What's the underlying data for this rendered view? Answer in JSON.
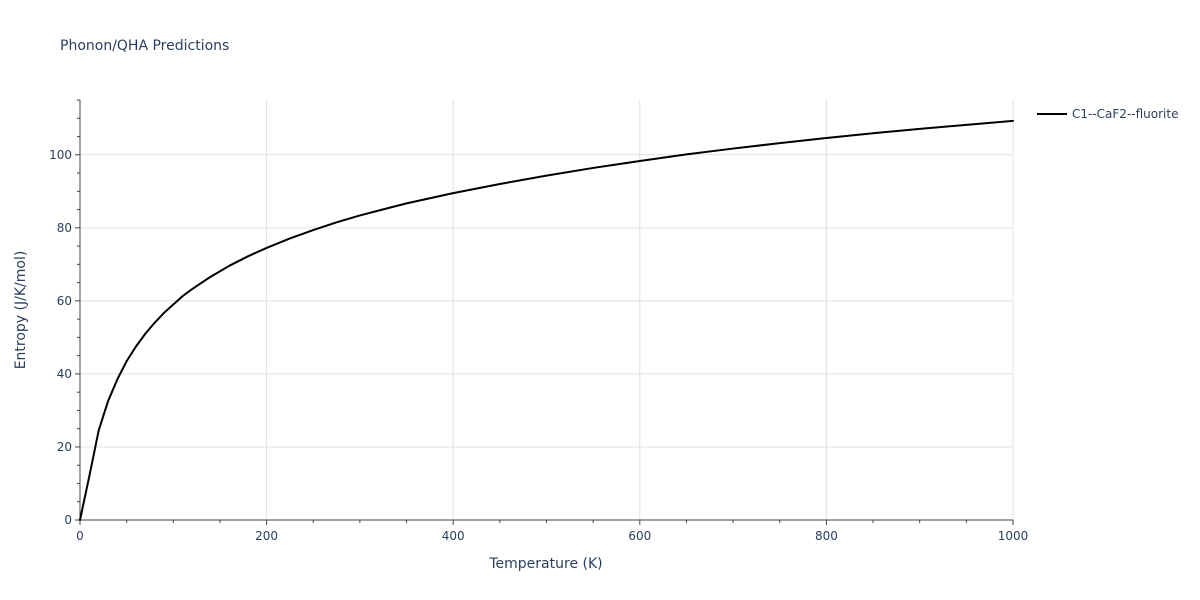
{
  "chart_data": {
    "type": "line",
    "title": "Phonon/QHA Predictions",
    "xlabel": "Temperature (K)",
    "ylabel": "Entropy (J/K/mol)",
    "xlim": [
      0,
      1000
    ],
    "ylim": [
      0,
      115
    ],
    "xticks": [
      0,
      200,
      400,
      600,
      800,
      1000
    ],
    "yticks": [
      0,
      20,
      40,
      60,
      80,
      100
    ],
    "grid": true,
    "legend_position": "top-right",
    "series": [
      {
        "name": "C1--CaF2--fluorite",
        "color": "#000000",
        "x": [
          0,
          10,
          20,
          30,
          40,
          50,
          60,
          70,
          80,
          90,
          100,
          110,
          120,
          140,
          160,
          180,
          200,
          225,
          250,
          275,
          300,
          350,
          400,
          450,
          500,
          550,
          600,
          650,
          700,
          750,
          800,
          850,
          900,
          950,
          1000
        ],
        "y": [
          0,
          12,
          24.5,
          32.5,
          38.5,
          43.5,
          47.5,
          51,
          54,
          56.7,
          59,
          61.3,
          63.2,
          66.6,
          69.6,
          72.2,
          74.5,
          77.1,
          79.4,
          81.5,
          83.4,
          86.7,
          89.5,
          92,
          94.3,
          96.4,
          98.3,
          100.1,
          101.7,
          103.2,
          104.6,
          105.9,
          107.1,
          108.2,
          109.3
        ]
      }
    ]
  }
}
